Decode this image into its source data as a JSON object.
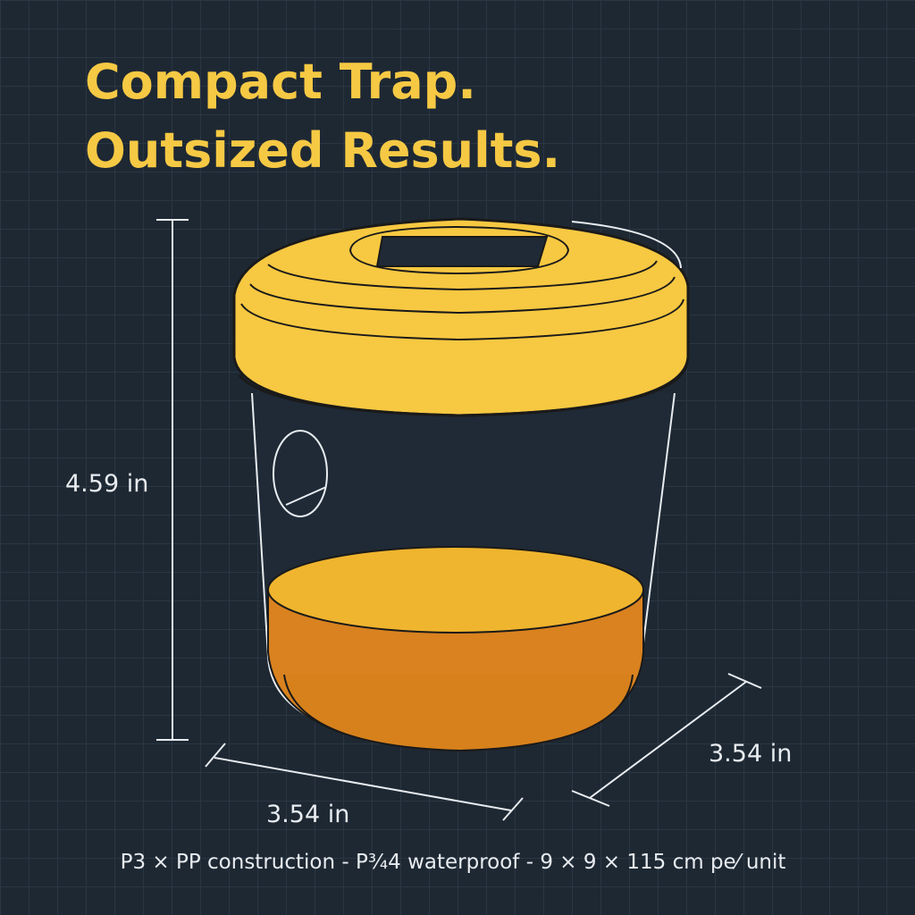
{
  "headline": [
    "Compact Trap.",
    "Outsized Results."
  ],
  "dimensions": {
    "height": "4.59 in",
    "width": "3.54 in",
    "depth": "3.54 in"
  },
  "footer": "P3 × PP construction - P¾4 waterproof - 9 × 9 × 115 cm pe⁄ unit"
}
